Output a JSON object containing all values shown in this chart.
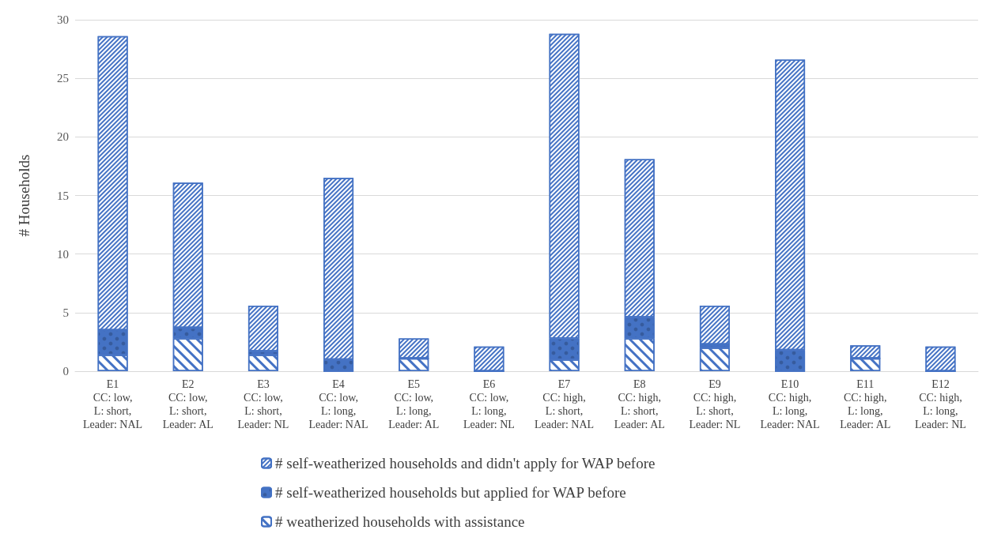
{
  "chart_data": {
    "type": "bar",
    "ylabel": "# Households",
    "stacked": true,
    "categories": [
      "E1\nCC: low,\nL: short,\nLeader: NAL",
      "E2\nCC: low,\nL: short,\nLeader: AL",
      "E3\nCC: low,\nL: short,\nLeader: NL",
      "E4\nCC: low,\nL: long,\nLeader: NAL",
      "E5\nCC: low,\nL: long,\nLeader: AL",
      "E6\nCC: low,\nL: long,\nLeader: NL",
      "E7\nCC: high,\nL: short,\nLeader: NAL",
      "E8\nCC: high,\nL: short,\nLeader: AL",
      "E9\nCC: high,\nL: short,\nLeader: NL",
      "E10\nCC: high,\nL: long,\nLeader: NAL",
      "E11\nCC: high,\nL: long,\nLeader: AL",
      "E12\nCC: high,\nL: long,\nLeader: NL"
    ],
    "series": [
      {
        "name": "# weatherized households with assistance",
        "color": "#4472c4",
        "values": [
          1.4,
          2.8,
          1.4,
          0,
          1.1,
          0,
          1.0,
          2.8,
          2.0,
          0,
          1.1,
          0
        ]
      },
      {
        "name": "# self-weatherized households but applied for WAP before",
        "color": "#4472c4",
        "values": [
          2.1,
          0.9,
          0.3,
          1.0,
          0,
          0,
          1.8,
          1.8,
          0.3,
          1.8,
          0,
          0
        ]
      },
      {
        "name": "# self-weatherized households and didn't apply for WAP before",
        "color": "#4472c4",
        "values": [
          25.1,
          12.4,
          3.9,
          15.5,
          1.7,
          2.1,
          26.0,
          13.5,
          3.3,
          24.8,
          1.1,
          2.1
        ]
      }
    ],
    "ylim": [
      0,
      30
    ],
    "yticks": [
      0,
      5,
      10,
      15,
      20,
      25,
      30
    ],
    "grid": "y",
    "legend": "bottom"
  }
}
